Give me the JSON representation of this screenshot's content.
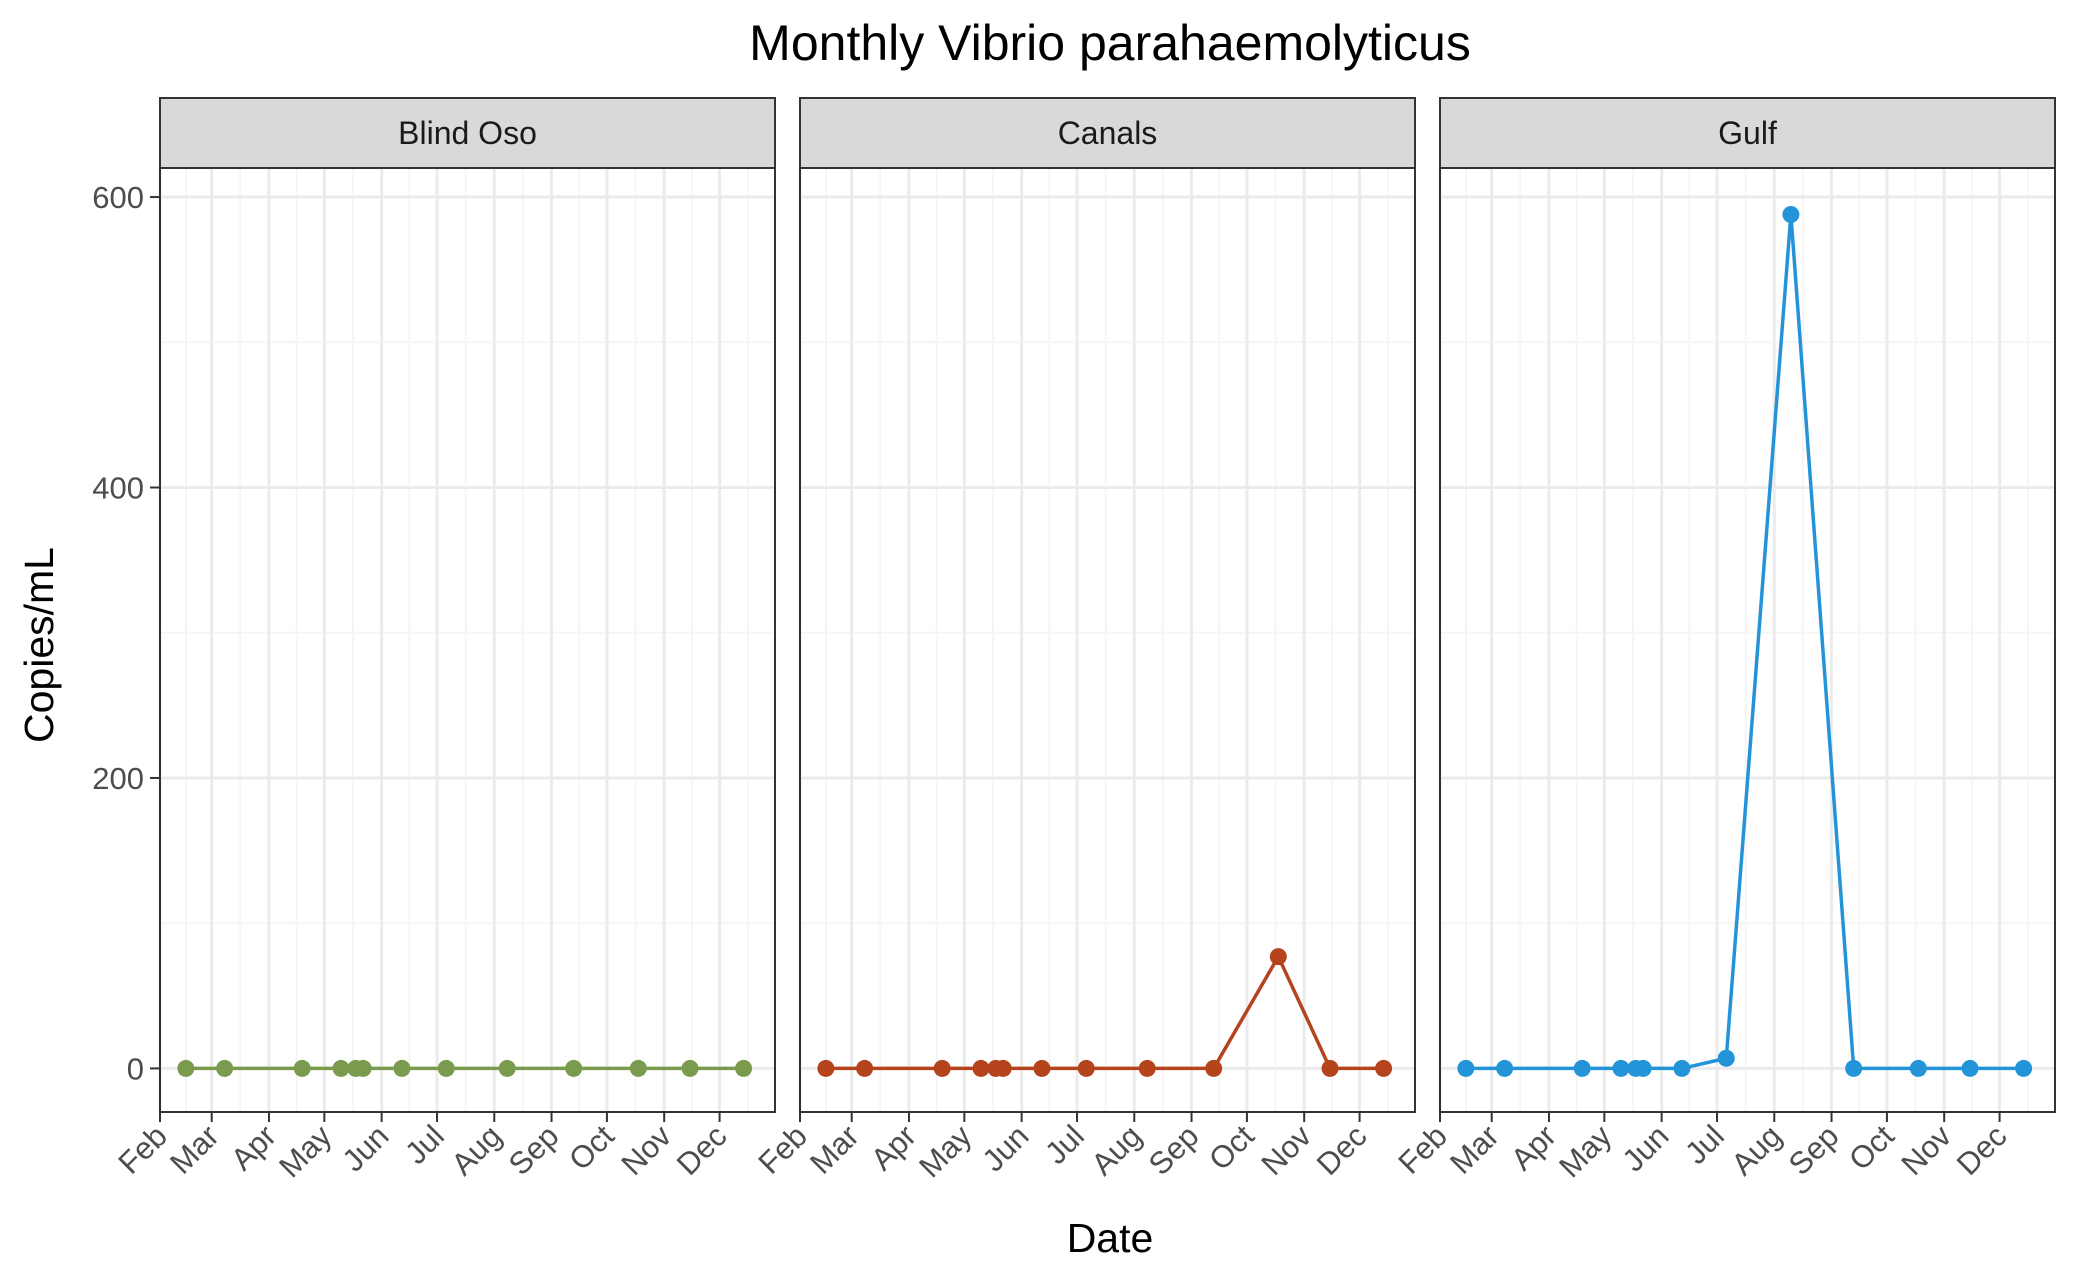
{
  "chart_data": {
    "type": "line",
    "title": "Monthly Vibrio parahaemolyticus",
    "xlabel": "Date",
    "ylabel": "Copies/mL",
    "x_tick_labels": [
      "Feb",
      "Mar",
      "Apr",
      "May",
      "Jun",
      "Jul",
      "Aug",
      "Sep",
      "Oct",
      "Nov",
      "Dec"
    ],
    "y_ticks": [
      0,
      200,
      400,
      600
    ],
    "ylim": [
      -30,
      620
    ],
    "xlim": [
      "2023-02-01",
      "2023-12-31"
    ],
    "grid": true,
    "legend": "none",
    "panels": [
      {
        "name": "Blind Oso",
        "color": "#7a9a4e",
        "points": [
          {
            "date": "2023-02-15",
            "value": 0
          },
          {
            "date": "2023-03-08",
            "value": 0
          },
          {
            "date": "2023-04-19",
            "value": 0
          },
          {
            "date": "2023-05-10",
            "value": 0
          },
          {
            "date": "2023-05-18",
            "value": 0
          },
          {
            "date": "2023-05-22",
            "value": 0
          },
          {
            "date": "2023-06-12",
            "value": 0
          },
          {
            "date": "2023-07-06",
            "value": 0
          },
          {
            "date": "2023-08-08",
            "value": 0
          },
          {
            "date": "2023-09-13",
            "value": 0
          },
          {
            "date": "2023-10-18",
            "value": 0
          },
          {
            "date": "2023-11-15",
            "value": 0
          },
          {
            "date": "2023-12-14",
            "value": 0
          }
        ]
      },
      {
        "name": "Canals",
        "color": "#b5431c",
        "points": [
          {
            "date": "2023-02-15",
            "value": 0
          },
          {
            "date": "2023-03-08",
            "value": 0
          },
          {
            "date": "2023-04-19",
            "value": 0
          },
          {
            "date": "2023-05-10",
            "value": 0
          },
          {
            "date": "2023-05-18",
            "value": 0
          },
          {
            "date": "2023-05-22",
            "value": 0
          },
          {
            "date": "2023-06-12",
            "value": 0
          },
          {
            "date": "2023-07-06",
            "value": 0
          },
          {
            "date": "2023-08-08",
            "value": 0
          },
          {
            "date": "2023-09-13",
            "value": 0
          },
          {
            "date": "2023-10-18",
            "value": 77
          },
          {
            "date": "2023-11-15",
            "value": 0
          },
          {
            "date": "2023-12-14",
            "value": 0
          }
        ]
      },
      {
        "name": "Gulf",
        "color": "#2494d8",
        "points": [
          {
            "date": "2023-02-15",
            "value": 0
          },
          {
            "date": "2023-03-08",
            "value": 0
          },
          {
            "date": "2023-04-19",
            "value": 0
          },
          {
            "date": "2023-05-10",
            "value": 0
          },
          {
            "date": "2023-05-18",
            "value": 0
          },
          {
            "date": "2023-05-22",
            "value": 0
          },
          {
            "date": "2023-06-12",
            "value": 0
          },
          {
            "date": "2023-07-06",
            "value": 7
          },
          {
            "date": "2023-08-10",
            "value": 588
          },
          {
            "date": "2023-09-13",
            "value": 0
          },
          {
            "date": "2023-10-18",
            "value": 0
          },
          {
            "date": "2023-11-15",
            "value": 0
          },
          {
            "date": "2023-12-14",
            "value": 0
          }
        ]
      }
    ]
  },
  "colors": {
    "strip_fill": "#d9d9d9",
    "panel_border": "#333333",
    "grid_major": "#ebebeb",
    "grid_minor": "#f5f5f5"
  }
}
